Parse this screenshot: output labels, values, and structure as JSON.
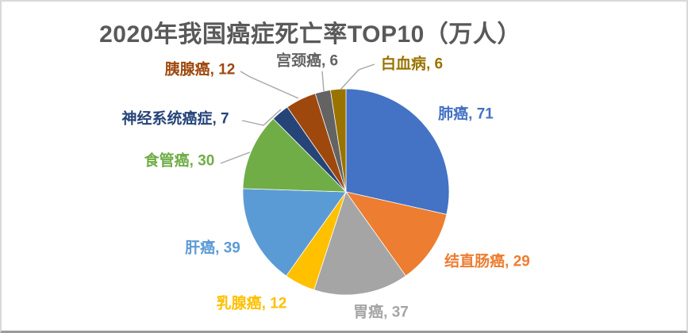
{
  "chart_data": {
    "type": "pie",
    "title": "2020年我国癌症死亡率TOP10（万人）",
    "unit": "万人",
    "total": 249,
    "start_angle_deg": 0,
    "direction": "clockwise",
    "legend": "none",
    "categories": [
      "肺癌",
      "结直肠癌",
      "胃癌",
      "乳腺癌",
      "肝癌",
      "食管癌",
      "神经系统癌症",
      "胰腺癌",
      "宫颈癌",
      "白血病"
    ],
    "values": [
      71,
      29,
      37,
      12,
      39,
      30,
      7,
      12,
      6,
      6
    ],
    "colors": [
      "#4472C4",
      "#ED7D31",
      "#A5A5A5",
      "#FFC000",
      "#5B9BD5",
      "#70AD47",
      "#264478",
      "#9E480E",
      "#636363",
      "#997300"
    ],
    "labels": [
      "肺癌, 71",
      "结直肠癌, 29",
      "胃癌, 37",
      "乳腺癌, 12",
      "肝癌, 39",
      "食管癌, 30",
      "神经系统癌症, 7",
      "胰腺癌, 12",
      "宫颈癌, 6",
      "白血病, 6"
    ],
    "label_format": "{category}, {value}"
  },
  "style": {
    "title_color": "#595959",
    "leader_line_color": "#A6A6A6",
    "slice_stroke_color": "#FFFFFF",
    "frame_border_color": "#D9D9D9",
    "background_color": "#FFFFFF"
  }
}
